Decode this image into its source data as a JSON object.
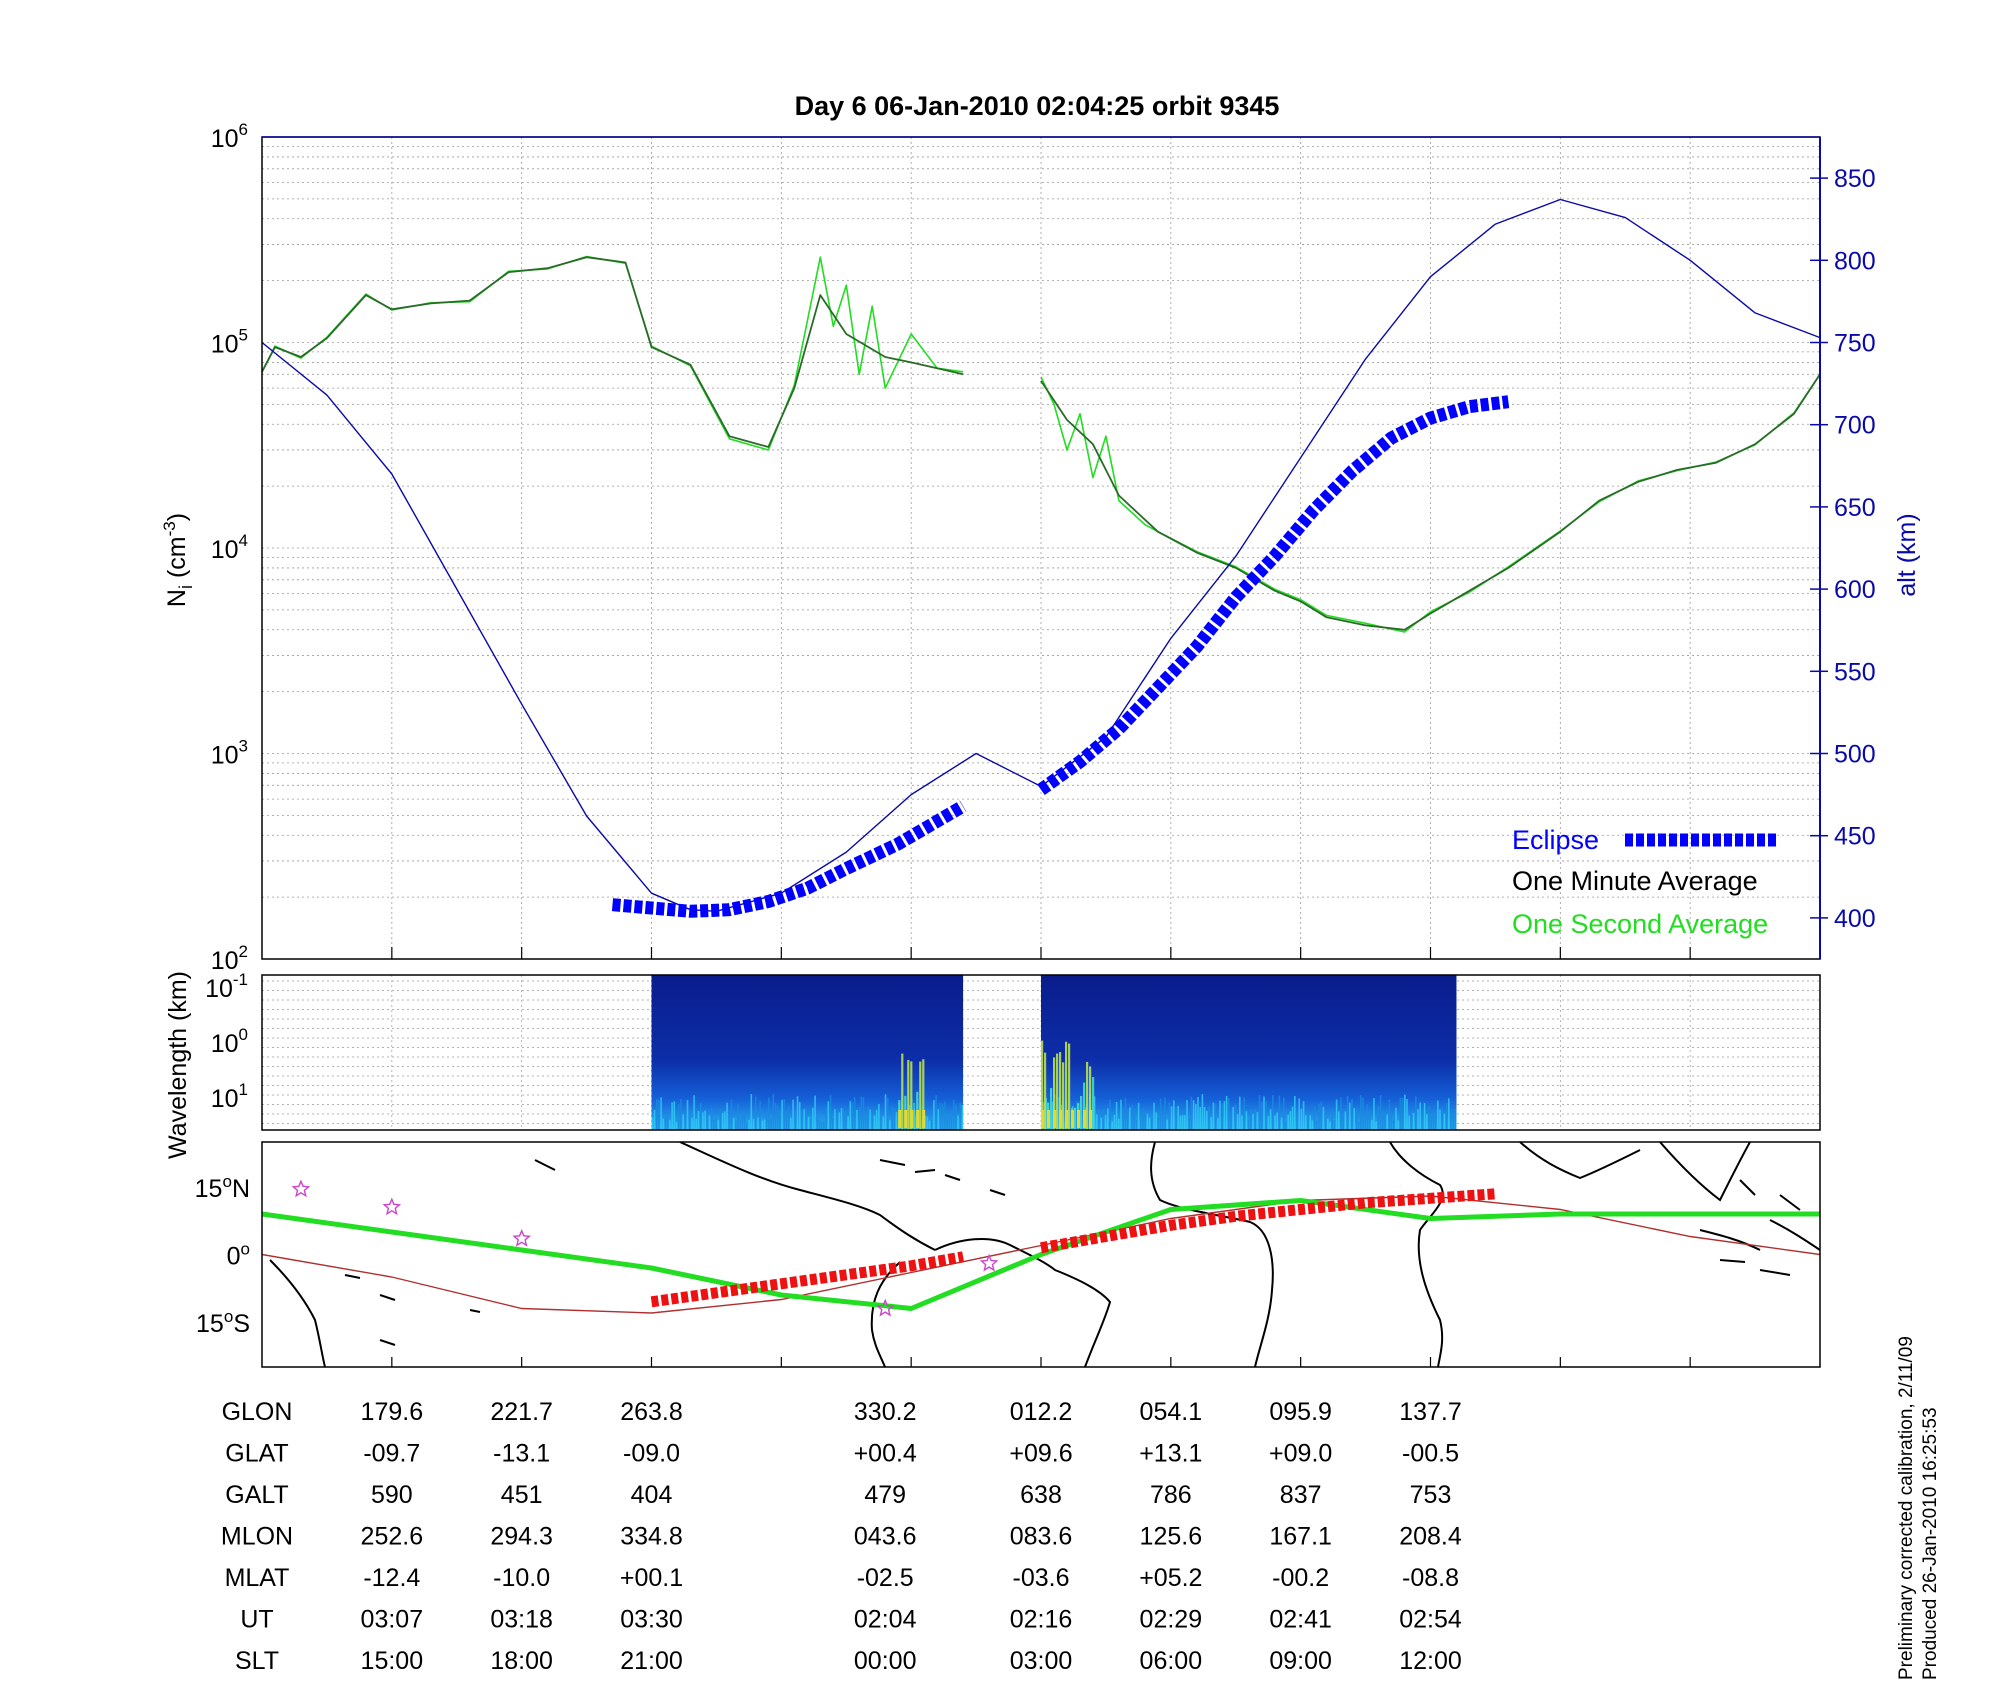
{
  "chart_data": [
    {
      "type": "line",
      "title": "Day 6  06-Jan-2010 02:04:25   orbit 9345",
      "ylabel_main": "N",
      "ylabel_sub": "i",
      "ylabel_unit_pre": " (cm",
      "ylabel_unit_exp": "-3",
      "ylabel_unit_post": ")",
      "ylim": [
        100,
        1000000
      ],
      "yscale": "log",
      "y_ticks": [
        {
          "base": "10",
          "exp": "2",
          "value": 100
        },
        {
          "base": "10",
          "exp": "3",
          "value": 1000
        },
        {
          "base": "10",
          "exp": "4",
          "value": 10000
        },
        {
          "base": "10",
          "exp": "5",
          "value": 100000
        },
        {
          "base": "10",
          "exp": "6",
          "value": 1000000
        }
      ],
      "y2label": "alt (km)",
      "y2lim": [
        375,
        875
      ],
      "y2_ticks": [
        "400",
        "450",
        "500",
        "550",
        "600",
        "650",
        "700",
        "750",
        "800",
        "850"
      ],
      "xlim": [
        0,
        12
      ],
      "x_gap": [
        5.42,
        6.0
      ],
      "grid": true,
      "legend_position": "bottom-right",
      "colors": {
        "ion_density": "#2a6b2a",
        "one_second": "#22dd22",
        "alt": "#0a0aa8",
        "eclipse": "#0000ff"
      },
      "series": [
        {
          "name": "One Minute Average",
          "x": [
            0.0,
            0.1,
            0.3,
            0.5,
            0.8,
            1.0,
            1.3,
            1.6,
            1.9,
            2.2,
            2.5,
            2.8,
            3.0,
            3.3,
            3.6,
            3.9,
            4.1,
            4.3,
            4.5,
            4.8,
            5.0,
            5.2,
            5.4
          ],
          "y": [
            72000,
            95000,
            85000,
            105000,
            170000,
            145000,
            155000,
            160000,
            220000,
            230000,
            260000,
            245000,
            95000,
            78000,
            35000,
            31000,
            60000,
            170000,
            110000,
            85000,
            80000,
            75000,
            70000
          ]
        },
        {
          "name": "One Minute Average",
          "x": [
            6.0,
            6.2,
            6.4,
            6.6,
            6.9,
            7.2,
            7.5,
            7.8,
            8.0,
            8.2,
            8.5,
            8.8,
            9.0,
            9.3,
            9.6,
            10.0,
            10.3,
            10.6,
            10.9,
            11.2,
            11.5,
            11.8,
            12.0
          ],
          "y": [
            65000,
            42000,
            32000,
            18000,
            12000,
            9500,
            8000,
            6200,
            5500,
            4600,
            4200,
            4000,
            4800,
            6200,
            8000,
            12000,
            17000,
            21000,
            24000,
            26000,
            32000,
            45000,
            70000
          ]
        },
        {
          "name": "One Second Average",
          "x": [
            0.0,
            0.1,
            0.3,
            0.5,
            0.8,
            1.0,
            1.3,
            1.6,
            1.9,
            2.2,
            2.5,
            2.8,
            3.0,
            3.3,
            3.6,
            3.9,
            4.1,
            4.3,
            4.4,
            4.5,
            4.6,
            4.7,
            4.8,
            5.0,
            5.2,
            5.4
          ],
          "y": [
            72000,
            96000,
            84000,
            106000,
            172000,
            144000,
            156000,
            158000,
            222000,
            228000,
            262000,
            243000,
            96000,
            77000,
            34000,
            30000,
            62000,
            260000,
            120000,
            190000,
            70000,
            150000,
            60000,
            110000,
            75000,
            72000
          ]
        },
        {
          "name": "One Second Average",
          "x": [
            6.0,
            6.1,
            6.2,
            6.3,
            6.4,
            6.5,
            6.6,
            6.8,
            6.9,
            7.2,
            7.5,
            7.8,
            8.0,
            8.2,
            8.5,
            8.8,
            9.0,
            9.3,
            9.6,
            10.0,
            10.3,
            10.6,
            10.9,
            11.2,
            11.5,
            11.8,
            12.0
          ],
          "y": [
            68000,
            50000,
            30000,
            45000,
            22000,
            35000,
            17000,
            13000,
            12000,
            9600,
            8100,
            6300,
            5600,
            4700,
            4300,
            3900,
            4900,
            6100,
            8100,
            12100,
            16800,
            21200,
            23800,
            26200,
            31800,
            45500,
            70000
          ]
        },
        {
          "name": "alt (km)",
          "axis": "y2",
          "x": [
            0.0,
            0.5,
            1.0,
            1.5,
            2.0,
            2.5,
            3.0,
            3.3,
            3.5,
            4.0,
            4.5,
            5.0,
            5.5,
            6.0,
            6.5,
            7.0,
            7.5,
            8.0,
            8.5,
            9.0,
            9.5,
            10.0,
            10.5,
            11.0,
            11.5,
            12.0
          ],
          "y": [
            750,
            718,
            670,
            600,
            530,
            462,
            415,
            405,
            404,
            415,
            440,
            475,
            500,
            480,
            510,
            570,
            620,
            680,
            740,
            790,
            822,
            837,
            826,
            800,
            768,
            753
          ]
        }
      ],
      "eclipse_segments": [
        {
          "x": [
            2.7,
            3.0,
            3.3,
            3.6,
            3.9,
            4.2,
            4.5,
            4.9,
            5.4
          ],
          "alt": [
            408,
            406,
            404,
            405,
            410,
            418,
            430,
            445,
            468
          ]
        },
        {
          "x": [
            6.0,
            6.3,
            6.6,
            6.9,
            7.2,
            7.5,
            7.8,
            8.1,
            8.4,
            8.7,
            9.0,
            9.3,
            9.6
          ],
          "alt": [
            478,
            495,
            515,
            540,
            565,
            595,
            620,
            648,
            672,
            692,
            704,
            711,
            714
          ]
        }
      ],
      "legend": [
        {
          "label": "Eclipse",
          "color": "#0000ff",
          "style": "dashed-thick"
        },
        {
          "label": "One Minute Average",
          "color": "#000000",
          "style": "line"
        },
        {
          "label": "One Second Average",
          "color": "#22dd22",
          "style": "line"
        }
      ]
    },
    {
      "type": "heatmap",
      "ylabel": "Wavelength (km)",
      "y_ticks": [
        {
          "base": "10",
          "exp": "-1"
        },
        {
          "base": "10",
          "exp": "0"
        },
        {
          "base": "10",
          "exp": "1"
        }
      ],
      "segments": [
        {
          "x_start": 3.0,
          "x_end": 5.4,
          "hot_x": [
            4.9,
            5.1
          ]
        },
        {
          "x_start": 6.0,
          "x_end": 9.2,
          "hot_x": [
            6.0,
            6.4
          ]
        }
      ]
    },
    {
      "type": "map",
      "y_ticks": [
        {
          "deg": "15",
          "hem": "N",
          "lat": 15
        },
        {
          "deg": "0",
          "hem": "",
          "lat": 0
        },
        {
          "deg": "15",
          "hem": "S",
          "lat": -15
        }
      ],
      "colors": {
        "track": "#22dd22",
        "magnetic_equator": "#b03030",
        "eclipse": "#ee1111",
        "stars": "#cc44cc",
        "coast": "#000000"
      },
      "magnetic_equator": {
        "x": [
          0,
          1,
          2,
          3,
          4,
          5,
          6,
          7,
          8,
          9,
          10,
          11,
          12
        ],
        "lat": [
          0,
          -5,
          -12,
          -13,
          -10,
          -4,
          2,
          8,
          12,
          13,
          10,
          4,
          0
        ]
      },
      "track": {
        "x": [
          0,
          1,
          2,
          3,
          4,
          5,
          6,
          7,
          8,
          9,
          10,
          11,
          12
        ],
        "lat": [
          9,
          5,
          1,
          -3,
          -9,
          -12,
          0,
          10,
          12,
          8,
          9,
          9,
          9
        ]
      },
      "eclipse": [
        {
          "x": [
            3.0,
            3.5,
            4.0,
            4.5,
            5.0,
            5.4
          ],
          "lat": [
            -10.5,
            -8.5,
            -6.5,
            -4.5,
            -2.5,
            -0.5
          ]
        },
        {
          "x": [
            6.0,
            6.5,
            7.0,
            7.5,
            8.0,
            8.5,
            9.0,
            9.5
          ],
          "lat": [
            1.5,
            4.0,
            6.5,
            8.5,
            10.0,
            11.5,
            12.5,
            13.5
          ]
        }
      ],
      "stars": [
        {
          "x": 0.3,
          "lat": 14.5
        },
        {
          "x": 1.0,
          "lat": 10.5
        },
        {
          "x": 2.0,
          "lat": 3.5
        },
        {
          "x": 4.8,
          "lat": -12.0
        },
        {
          "x": 5.6,
          "lat": -2.0
        }
      ]
    }
  ],
  "table": {
    "row_labels": [
      "GLON",
      "GLAT",
      "GALT",
      "MLON",
      "MLAT",
      "UT",
      "SLT"
    ],
    "x_positions": [
      1,
      2,
      3,
      4.8,
      6,
      7,
      8,
      9
    ],
    "rows": [
      [
        "179.6",
        "221.7",
        "263.8",
        "330.2",
        "012.2",
        "054.1",
        "095.9",
        "137.7"
      ],
      [
        "-09.7",
        "-13.1",
        "-09.0",
        "+00.4",
        "+09.6",
        "+13.1",
        "+09.0",
        "-00.5"
      ],
      [
        "590",
        "451",
        "404",
        "479",
        "638",
        "786",
        "837",
        "753"
      ],
      [
        "252.6",
        "294.3",
        "334.8",
        "043.6",
        "083.6",
        "125.6",
        "167.1",
        "208.4"
      ],
      [
        "-12.4",
        "-10.0",
        "+00.1",
        "-02.5",
        "-03.6",
        "+05.2",
        "-00.2",
        "-08.8"
      ],
      [
        "03:07",
        "03:18",
        "03:30",
        "02:04",
        "02:16",
        "02:29",
        "02:41",
        "02:54"
      ],
      [
        "15:00",
        "18:00",
        "21:00",
        "00:00",
        "03:00",
        "06:00",
        "09:00",
        "12:00"
      ]
    ]
  },
  "footer": {
    "line1": "Preliminary corrected calibration, 2/11/09",
    "line2": "Produced 26-Jan-2010 16:25:53"
  }
}
